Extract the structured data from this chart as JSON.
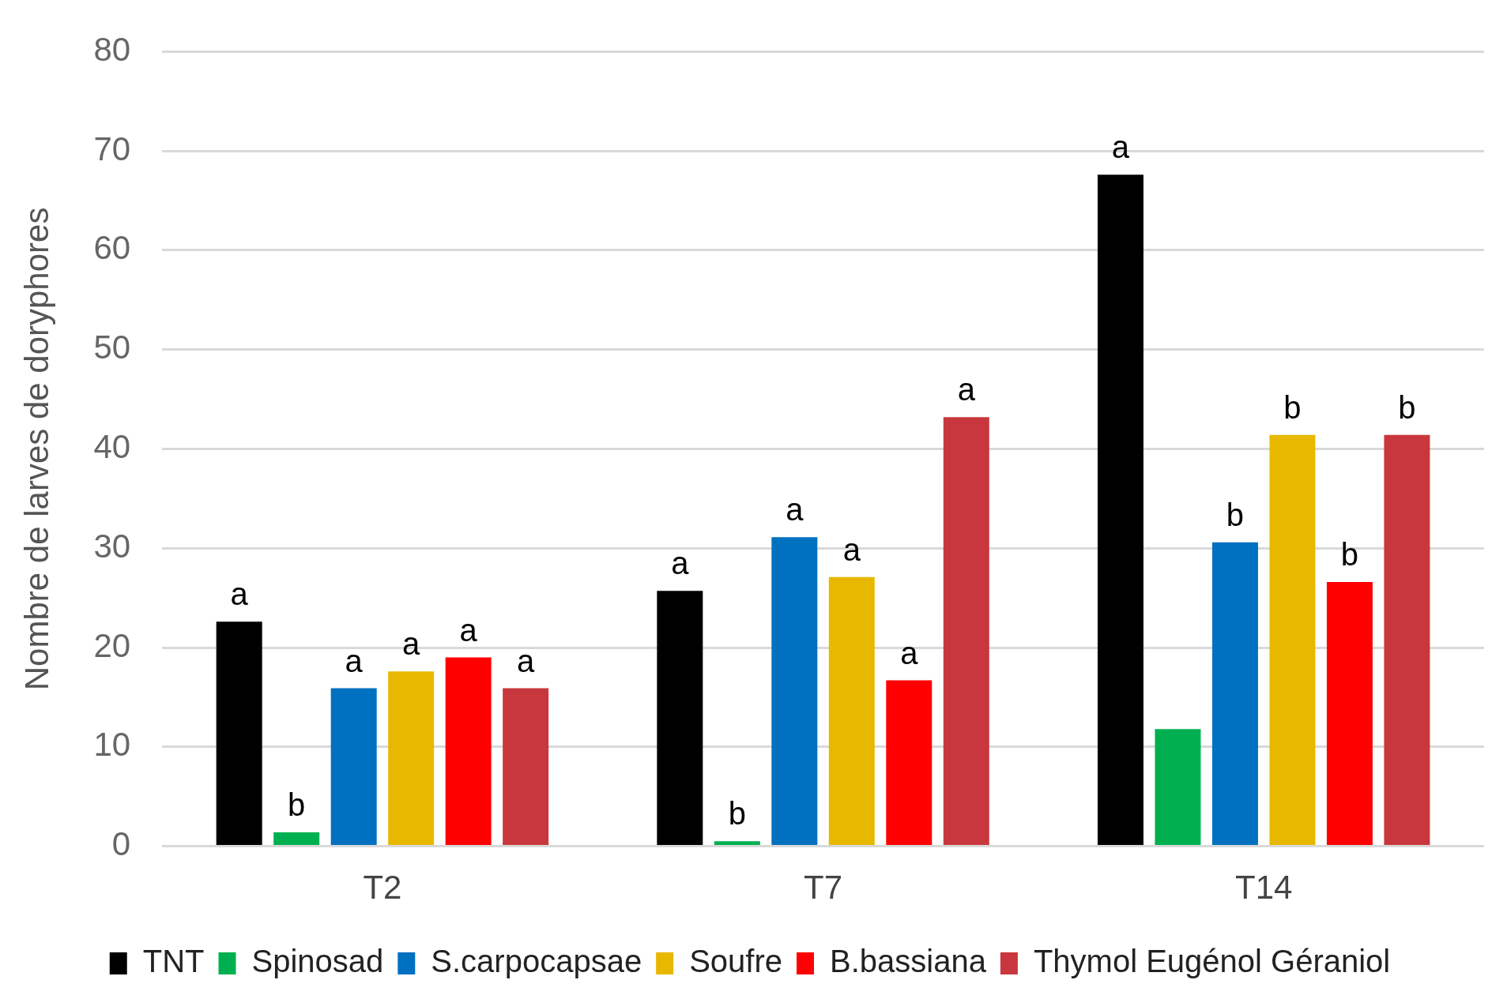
{
  "chart_data": {
    "type": "bar",
    "ylabel": "Nombre de larves de doryphores",
    "categories": [
      "T2",
      "T7",
      "T14"
    ],
    "series": [
      {
        "name": "TNT",
        "color": "#000000",
        "values": [
          22.6,
          25.7,
          67.6
        ],
        "value_labels": [
          "a",
          "a",
          "a"
        ]
      },
      {
        "name": "Spinosad",
        "color": "#00b050",
        "values": [
          1.4,
          0.5,
          11.8
        ],
        "value_labels": [
          "b",
          "b",
          null
        ]
      },
      {
        "name": "S.carpocapsae",
        "color": "#0070c0",
        "values": [
          15.9,
          31.1,
          30.6
        ],
        "value_labels": [
          "a",
          "a",
          "b"
        ]
      },
      {
        "name": "Soufre",
        "color": "#e8b800",
        "values": [
          17.6,
          27.1,
          41.4
        ],
        "value_labels": [
          "a",
          "a",
          "b"
        ]
      },
      {
        "name": "B.bassiana",
        "color": "#ff0000",
        "values": [
          19.0,
          16.7,
          26.6
        ],
        "value_labels": [
          "a",
          "a",
          "b"
        ]
      },
      {
        "name": "Thymol Eugénol Géraniol",
        "color": "#c8373d",
        "values": [
          15.9,
          43.2,
          41.4
        ],
        "value_labels": [
          "a",
          "a",
          "b"
        ]
      }
    ],
    "ylim": [
      0,
      80
    ],
    "yticks": [
      0,
      10,
      20,
      30,
      40,
      50,
      60,
      70,
      80
    ],
    "grid": "y",
    "legend": "bottom"
  }
}
